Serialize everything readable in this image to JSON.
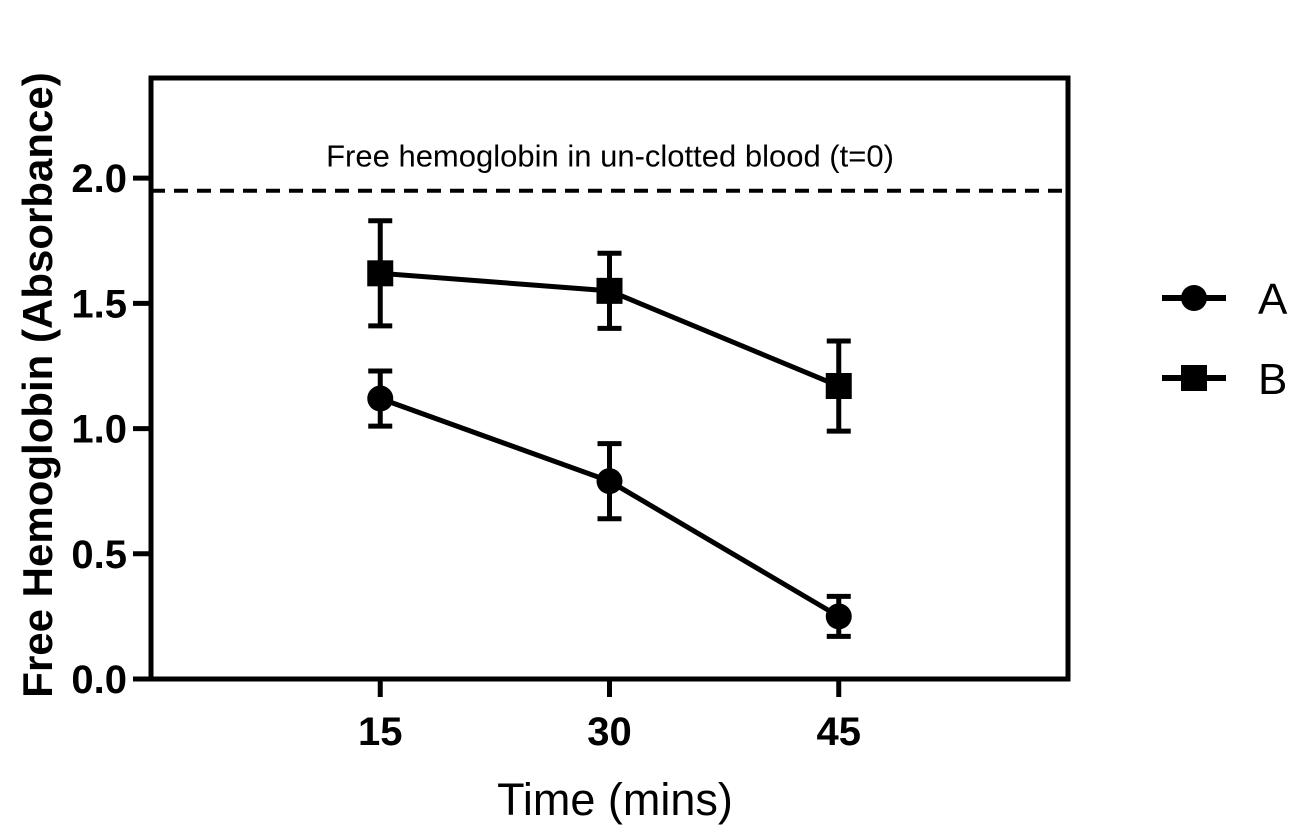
{
  "chart_data": {
    "type": "line",
    "title": "",
    "xlabel": "Time (mins)",
    "ylabel": "Free Hemoglobin (Absorbance)",
    "x": [
      15,
      30,
      45
    ],
    "x_tick_labels": [
      "15",
      "30",
      "45"
    ],
    "xlim": [
      0,
      60
    ],
    "ylim": [
      0,
      2.4
    ],
    "y_ticks": [
      0.0,
      0.5,
      1.0,
      1.5,
      2.0
    ],
    "y_tick_labels": [
      "0.0",
      "0.5",
      "1.0",
      "1.5",
      "2.0"
    ],
    "grid": false,
    "legend_position": "right",
    "series": [
      {
        "name": "A",
        "marker": "circle",
        "values": [
          1.12,
          0.79,
          0.25
        ],
        "error": [
          0.11,
          0.15,
          0.08
        ],
        "color": "#000000"
      },
      {
        "name": "B",
        "marker": "square",
        "values": [
          1.62,
          1.55,
          1.17
        ],
        "error": [
          0.21,
          0.15,
          0.18
        ],
        "color": "#000000"
      }
    ],
    "reference_line": {
      "y": 1.95,
      "style": "dashed",
      "label": "Free hemoglobin in un-clotted blood (t=0)"
    }
  }
}
